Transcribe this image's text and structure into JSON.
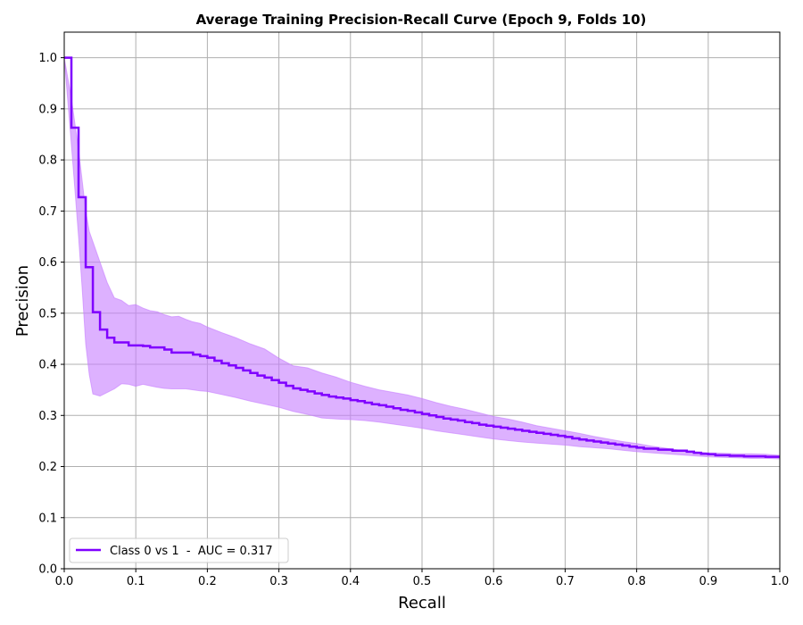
{
  "chart_data": {
    "type": "line",
    "title": "Average Training Precision-Recall Curve (Epoch 9, Folds 10)",
    "xlabel": "Recall",
    "ylabel": "Precision",
    "xlim": [
      0.0,
      1.0
    ],
    "ylim": [
      0.0,
      1.05
    ],
    "xticks": [
      "0.0",
      "0.1",
      "0.2",
      "0.3",
      "0.4",
      "0.5",
      "0.6",
      "0.7",
      "0.8",
      "0.9",
      "1.0"
    ],
    "yticks": [
      "0.0",
      "0.1",
      "0.2",
      "0.3",
      "0.4",
      "0.5",
      "0.6",
      "0.7",
      "0.8",
      "0.9",
      "1.0"
    ],
    "grid": true,
    "legend_position": "lower-left",
    "series": [
      {
        "name": "Class 0 vs 1  -  AUC = 0.317",
        "color": "#7f00ff",
        "band_color": "#c77dff",
        "step": true,
        "x": [
          0.0,
          0.01,
          0.02,
          0.03,
          0.04,
          0.05,
          0.06,
          0.07,
          0.09,
          0.11,
          0.12,
          0.14,
          0.15,
          0.18,
          0.19,
          0.2,
          0.21,
          0.22,
          0.23,
          0.24,
          0.25,
          0.26,
          0.27,
          0.28,
          0.29,
          0.3,
          0.31,
          0.32,
          0.33,
          0.34,
          0.35,
          0.36,
          0.37,
          0.38,
          0.39,
          0.4,
          0.41,
          0.42,
          0.43,
          0.44,
          0.45,
          0.46,
          0.47,
          0.48,
          0.49,
          0.5,
          0.51,
          0.52,
          0.53,
          0.54,
          0.55,
          0.56,
          0.57,
          0.58,
          0.59,
          0.6,
          0.61,
          0.62,
          0.63,
          0.64,
          0.65,
          0.66,
          0.67,
          0.68,
          0.69,
          0.7,
          0.71,
          0.72,
          0.73,
          0.74,
          0.75,
          0.76,
          0.77,
          0.78,
          0.79,
          0.8,
          0.81,
          0.83,
          0.85,
          0.87,
          0.88,
          0.89,
          0.9,
          0.91,
          0.93,
          0.95,
          0.98,
          1.0
        ],
        "y": [
          1.0,
          0.863,
          0.727,
          0.59,
          0.502,
          0.468,
          0.452,
          0.443,
          0.437,
          0.436,
          0.433,
          0.429,
          0.423,
          0.419,
          0.416,
          0.413,
          0.407,
          0.402,
          0.398,
          0.393,
          0.388,
          0.383,
          0.378,
          0.374,
          0.369,
          0.364,
          0.358,
          0.353,
          0.35,
          0.347,
          0.343,
          0.34,
          0.337,
          0.335,
          0.333,
          0.33,
          0.328,
          0.325,
          0.322,
          0.32,
          0.317,
          0.314,
          0.311,
          0.309,
          0.306,
          0.303,
          0.3,
          0.297,
          0.294,
          0.292,
          0.29,
          0.287,
          0.285,
          0.282,
          0.28,
          0.278,
          0.276,
          0.274,
          0.272,
          0.27,
          0.268,
          0.266,
          0.264,
          0.262,
          0.26,
          0.258,
          0.255,
          0.253,
          0.251,
          0.249,
          0.247,
          0.245,
          0.243,
          0.241,
          0.239,
          0.237,
          0.235,
          0.233,
          0.231,
          0.229,
          0.227,
          0.225,
          0.224,
          0.222,
          0.221,
          0.22,
          0.219,
          0.219
        ],
        "band": {
          "x": [
            0.0,
            0.01,
            0.02,
            0.025,
            0.03,
            0.035,
            0.04,
            0.05,
            0.06,
            0.07,
            0.08,
            0.09,
            0.1,
            0.11,
            0.12,
            0.13,
            0.14,
            0.15,
            0.16,
            0.17,
            0.18,
            0.19,
            0.2,
            0.22,
            0.24,
            0.26,
            0.28,
            0.3,
            0.32,
            0.34,
            0.36,
            0.38,
            0.4,
            0.42,
            0.44,
            0.46,
            0.48,
            0.5,
            0.52,
            0.54,
            0.56,
            0.58,
            0.6,
            0.62,
            0.64,
            0.66,
            0.68,
            0.7,
            0.72,
            0.74,
            0.76,
            0.78,
            0.8,
            0.82,
            0.84,
            0.86,
            0.88,
            0.9,
            0.92,
            0.94,
            0.96,
            0.98,
            1.0
          ],
          "upper": [
            1.0,
            0.92,
            0.82,
            0.76,
            0.7,
            0.66,
            0.64,
            0.6,
            0.56,
            0.53,
            0.525,
            0.515,
            0.517,
            0.51,
            0.505,
            0.503,
            0.497,
            0.493,
            0.494,
            0.488,
            0.483,
            0.48,
            0.473,
            0.462,
            0.452,
            0.44,
            0.43,
            0.412,
            0.397,
            0.393,
            0.383,
            0.375,
            0.365,
            0.357,
            0.35,
            0.345,
            0.34,
            0.333,
            0.325,
            0.318,
            0.312,
            0.305,
            0.298,
            0.293,
            0.287,
            0.28,
            0.275,
            0.27,
            0.265,
            0.259,
            0.254,
            0.249,
            0.245,
            0.24,
            0.236,
            0.232,
            0.229,
            0.227,
            0.226,
            0.225,
            0.225,
            0.224,
            0.222
          ],
          "lower": [
            1.0,
            0.83,
            0.65,
            0.55,
            0.44,
            0.38,
            0.342,
            0.338,
            0.345,
            0.352,
            0.362,
            0.361,
            0.357,
            0.361,
            0.358,
            0.355,
            0.353,
            0.352,
            0.352,
            0.352,
            0.35,
            0.348,
            0.347,
            0.341,
            0.335,
            0.328,
            0.322,
            0.316,
            0.308,
            0.302,
            0.295,
            0.293,
            0.292,
            0.29,
            0.287,
            0.283,
            0.279,
            0.275,
            0.27,
            0.266,
            0.262,
            0.258,
            0.254,
            0.251,
            0.248,
            0.246,
            0.244,
            0.242,
            0.239,
            0.237,
            0.235,
            0.232,
            0.229,
            0.227,
            0.225,
            0.223,
            0.221,
            0.219,
            0.218,
            0.217,
            0.216,
            0.216,
            0.215
          ]
        }
      }
    ]
  }
}
